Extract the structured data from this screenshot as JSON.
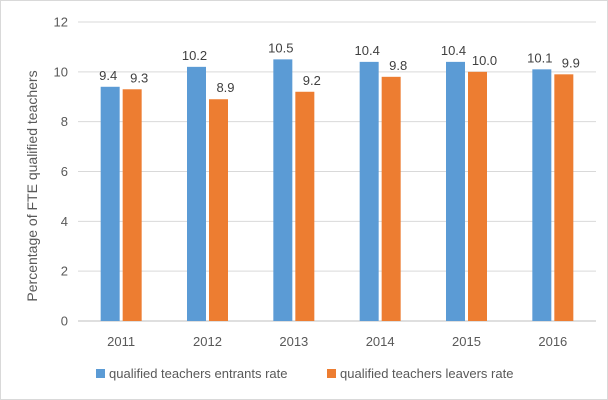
{
  "chart_data": {
    "type": "bar",
    "title": "",
    "xlabel": "",
    "ylabel": "Percentage of FTE qualified teachers",
    "categories": [
      "2011",
      "2012",
      "2013",
      "2014",
      "2015",
      "2016"
    ],
    "series": [
      {
        "name": "qualified teachers entrants rate",
        "values": [
          9.4,
          10.2,
          10.5,
          10.4,
          10.4,
          10.1
        ],
        "labels": [
          "9.4",
          "10.2",
          "10.5",
          "10.4",
          "10.4",
          "10.1"
        ],
        "color": "#5b9bd5"
      },
      {
        "name": "qualified teachers leavers rate",
        "values": [
          9.3,
          8.9,
          9.2,
          9.8,
          10.0,
          9.9
        ],
        "labels": [
          "9.3",
          "8.9",
          "9.2",
          "9.8",
          "10.0",
          "9.9"
        ],
        "color": "#ed7d31"
      }
    ],
    "ylim": [
      0,
      12
    ],
    "yticks": [
      "0",
      "2",
      "4",
      "6",
      "8",
      "10",
      "12"
    ],
    "grid": true,
    "legend_position": "bottom"
  }
}
